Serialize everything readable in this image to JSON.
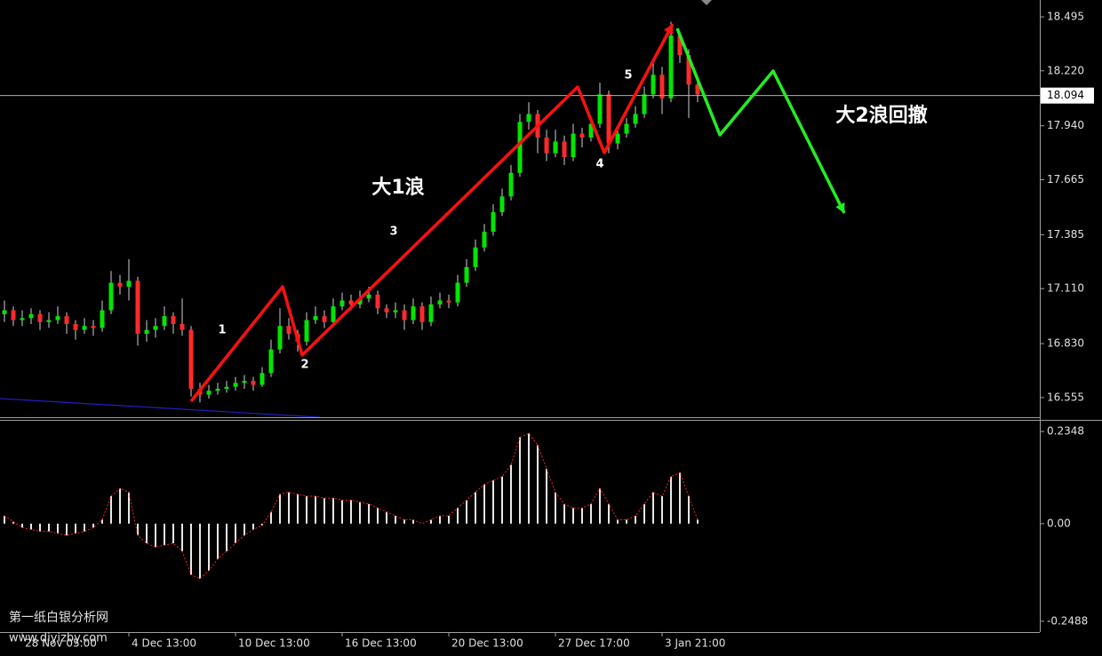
{
  "chart_data": [
    {
      "type": "candlestick",
      "up_color": "#00e600",
      "down_color": "#ff2a2a",
      "ylim": [
        16.455,
        18.581
      ],
      "yticks": [
        18.495,
        {
          "value": 18.22,
          "label": "18.220"
        },
        {
          "value": 17.94,
          "label": "17.940"
        },
        17.665,
        17.385,
        {
          "value": 17.11,
          "label": "17.110"
        },
        {
          "value": 16.83,
          "label": "16.830"
        },
        16.555
      ],
      "current_price": 18.094,
      "annotations": [
        "大1浪",
        "大2浪回撤",
        "1",
        "2",
        "3",
        "4",
        "5"
      ],
      "candles": [
        [
          16.98,
          17.05,
          16.94,
          17.0
        ],
        [
          17.0,
          17.02,
          16.92,
          16.95
        ],
        [
          16.95,
          17.0,
          16.92,
          16.96
        ],
        [
          16.96,
          17.01,
          16.93,
          16.98
        ],
        [
          16.98,
          17.0,
          16.9,
          16.94
        ],
        [
          16.94,
          16.99,
          16.91,
          16.95
        ],
        [
          16.95,
          17.02,
          16.93,
          16.97
        ],
        [
          16.97,
          16.99,
          16.88,
          16.93
        ],
        [
          16.93,
          16.95,
          16.85,
          16.9
        ],
        [
          16.9,
          16.96,
          16.88,
          16.92
        ],
        [
          16.92,
          16.95,
          16.87,
          16.91
        ],
        [
          16.91,
          17.05,
          16.89,
          17.0
        ],
        [
          17.0,
          17.2,
          16.98,
          17.14
        ],
        [
          17.14,
          17.18,
          17.08,
          17.12
        ],
        [
          17.12,
          17.26,
          17.05,
          17.15
        ],
        [
          17.15,
          17.17,
          16.82,
          16.88
        ],
        [
          16.88,
          16.95,
          16.84,
          16.9
        ],
        [
          16.9,
          16.96,
          16.86,
          16.92
        ],
        [
          16.92,
          17.02,
          16.9,
          16.97
        ],
        [
          16.97,
          16.99,
          16.88,
          16.93
        ],
        [
          16.93,
          17.06,
          16.87,
          16.9
        ],
        [
          16.9,
          16.92,
          16.56,
          16.6
        ],
        [
          16.6,
          16.63,
          16.53,
          16.57
        ],
        [
          16.57,
          16.62,
          16.55,
          16.59
        ],
        [
          16.59,
          16.63,
          16.57,
          16.6
        ],
        [
          16.6,
          16.64,
          16.58,
          16.61
        ],
        [
          16.61,
          16.66,
          16.59,
          16.63
        ],
        [
          16.63,
          16.67,
          16.6,
          16.64
        ],
        [
          16.64,
          16.66,
          16.59,
          16.62
        ],
        [
          16.62,
          16.71,
          16.61,
          16.68
        ],
        [
          16.68,
          16.85,
          16.66,
          16.8
        ],
        [
          16.8,
          17.01,
          16.78,
          16.92
        ],
        [
          16.92,
          16.96,
          16.85,
          16.88
        ],
        [
          16.88,
          16.9,
          16.79,
          16.84
        ],
        [
          16.84,
          16.99,
          16.82,
          16.95
        ],
        [
          16.95,
          17.02,
          16.93,
          16.97
        ],
        [
          16.97,
          17.0,
          16.91,
          16.94
        ],
        [
          16.94,
          17.06,
          16.92,
          17.02
        ],
        [
          17.02,
          17.09,
          17.0,
          17.05
        ],
        [
          17.05,
          17.08,
          17.0,
          17.03
        ],
        [
          17.03,
          17.1,
          17.01,
          17.06
        ],
        [
          17.06,
          17.12,
          17.04,
          17.08
        ],
        [
          17.08,
          17.1,
          16.98,
          17.01
        ],
        [
          17.01,
          17.03,
          16.96,
          16.99
        ],
        [
          16.99,
          17.04,
          16.96,
          17.0
        ],
        [
          17.0,
          17.03,
          16.9,
          16.95
        ],
        [
          16.95,
          17.06,
          16.93,
          17.02
        ],
        [
          17.02,
          17.04,
          16.9,
          16.94
        ],
        [
          16.94,
          17.07,
          16.92,
          17.03
        ],
        [
          17.03,
          17.09,
          17.01,
          17.05
        ],
        [
          17.05,
          17.08,
          17.01,
          17.04
        ],
        [
          17.04,
          17.18,
          17.02,
          17.14
        ],
        [
          17.14,
          17.26,
          17.12,
          17.22
        ],
        [
          17.22,
          17.36,
          17.2,
          17.32
        ],
        [
          17.32,
          17.44,
          17.3,
          17.4
        ],
        [
          17.4,
          17.54,
          17.38,
          17.5
        ],
        [
          17.5,
          17.62,
          17.48,
          17.58
        ],
        [
          17.58,
          17.74,
          17.56,
          17.7
        ],
        [
          17.7,
          18.0,
          17.68,
          17.96
        ],
        [
          17.96,
          18.06,
          17.92,
          18.0
        ],
        [
          18.0,
          18.02,
          17.8,
          17.88
        ],
        [
          17.88,
          17.92,
          17.76,
          17.8
        ],
        [
          17.8,
          17.92,
          17.78,
          17.86
        ],
        [
          17.86,
          17.89,
          17.74,
          17.78
        ],
        [
          17.78,
          17.95,
          17.76,
          17.9
        ],
        [
          17.9,
          17.93,
          17.83,
          17.88
        ],
        [
          17.88,
          17.99,
          17.86,
          17.95
        ],
        [
          17.95,
          18.16,
          17.93,
          18.1
        ],
        [
          18.1,
          18.12,
          17.8,
          17.85
        ],
        [
          17.85,
          17.94,
          17.82,
          17.9
        ],
        [
          17.9,
          17.98,
          17.88,
          17.95
        ],
        [
          17.95,
          18.04,
          17.93,
          18.0
        ],
        [
          18.0,
          18.14,
          17.98,
          18.1
        ],
        [
          18.1,
          18.26,
          18.08,
          18.2
        ],
        [
          18.2,
          18.24,
          18.0,
          18.08
        ],
        [
          18.08,
          18.47,
          18.06,
          18.4
        ],
        [
          18.4,
          18.42,
          18.26,
          18.3
        ],
        [
          18.3,
          18.33,
          17.98,
          18.15
        ],
        [
          18.15,
          18.18,
          18.06,
          18.1
        ]
      ]
    },
    {
      "type": "bar",
      "color": "#e8e8e8",
      "ylim": [
        -0.2762,
        0.2599
      ],
      "yticks": [
        0.2348,
        {
          "value": 0,
          "label": "0.00"
        },
        -0.2488
      ],
      "xlim": [
        -0.5,
        116.5
      ],
      "xticks": [
        {
          "value": 2,
          "label": "28 Nov 05:00"
        },
        {
          "value": 14,
          "label": "4 Dec 13:00"
        },
        {
          "value": 26,
          "label": "10 Dec 13:00"
        },
        {
          "value": 38,
          "label": "16 Dec 13:00"
        },
        {
          "value": 50,
          "label": "20 Dec 13:00"
        },
        {
          "value": 62,
          "label": "27 Dec 17:00"
        },
        {
          "value": 74,
          "label": "3 Jan 21:00"
        }
      ],
      "values": [
        0.02,
        0.005,
        -0.01,
        -0.015,
        -0.02,
        -0.02,
        -0.025,
        -0.03,
        -0.025,
        -0.02,
        -0.01,
        0.01,
        0.07,
        0.09,
        0.08,
        -0.03,
        -0.05,
        -0.06,
        -0.055,
        -0.05,
        -0.07,
        -0.13,
        -0.14,
        -0.12,
        -0.09,
        -0.07,
        -0.05,
        -0.03,
        -0.015,
        -0.005,
        0.03,
        0.075,
        0.08,
        0.075,
        0.07,
        0.07,
        0.065,
        0.065,
        0.06,
        0.06,
        0.055,
        0.05,
        0.04,
        0.03,
        0.02,
        0.01,
        0.01,
        0.0,
        0.01,
        0.02,
        0.02,
        0.04,
        0.06,
        0.08,
        0.1,
        0.11,
        0.12,
        0.15,
        0.22,
        0.23,
        0.2,
        0.14,
        0.08,
        0.05,
        0.04,
        0.04,
        0.05,
        0.09,
        0.05,
        0.01,
        0.01,
        0.02,
        0.05,
        0.08,
        0.07,
        0.12,
        0.13,
        0.07,
        0.01
      ]
    }
  ],
  "watermark": [
    "第一纸白银分析网",
    "www.diyizby.com"
  ]
}
